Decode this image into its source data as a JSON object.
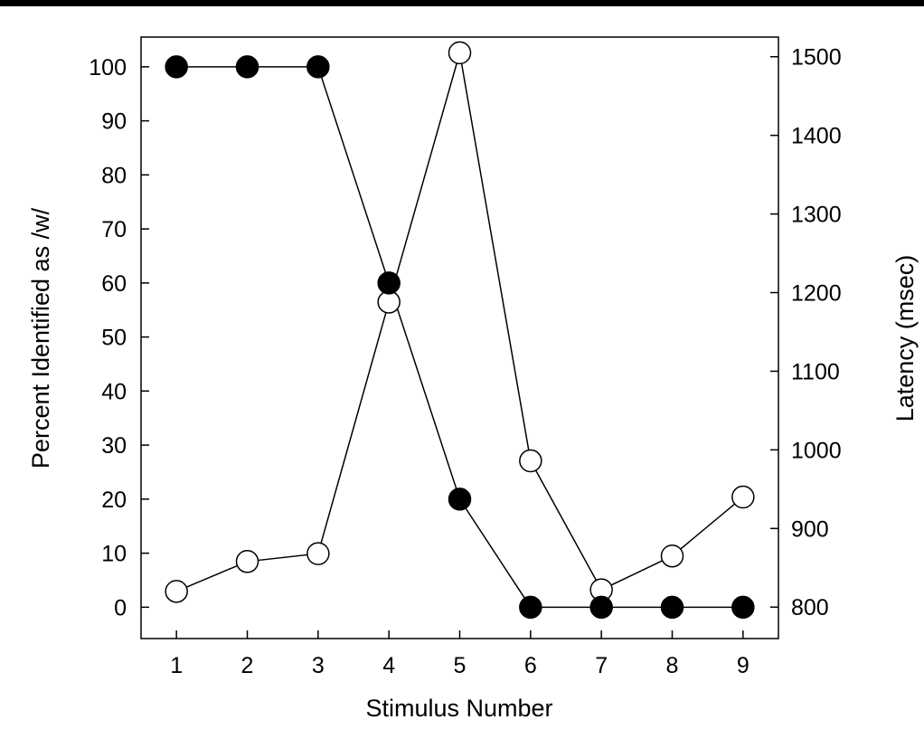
{
  "chart_data": {
    "type": "line",
    "title": "",
    "xlabel": "Stimulus Number",
    "ylabel_left": "Percent Identified as /w/",
    "ylabel_right": "Latency (msec)",
    "x": [
      1,
      2,
      3,
      4,
      5,
      6,
      7,
      8,
      9
    ],
    "xlim": [
      0.5,
      9.5
    ],
    "ylim_left": [
      -5.8,
      105.5
    ],
    "ylim_right": [
      760,
      1525
    ],
    "x_ticks": [
      1,
      2,
      3,
      4,
      5,
      6,
      7,
      8,
      9
    ],
    "y_ticks_left": [
      0,
      10,
      20,
      30,
      40,
      50,
      60,
      70,
      80,
      90,
      100
    ],
    "y_ticks_right": [
      800,
      900,
      1000,
      1100,
      1200,
      1300,
      1400,
      1500
    ],
    "grid": false,
    "legend": "none",
    "series": [
      {
        "axis": "left",
        "marker": "filled-circle",
        "color": "#000000",
        "values": [
          100,
          100,
          100,
          60,
          20,
          0,
          0,
          0,
          0
        ]
      },
      {
        "axis": "right",
        "marker": "open-circle",
        "color": "#000000",
        "values": [
          820,
          858,
          868,
          1188,
          1505,
          986,
          822,
          865,
          940
        ]
      }
    ]
  }
}
